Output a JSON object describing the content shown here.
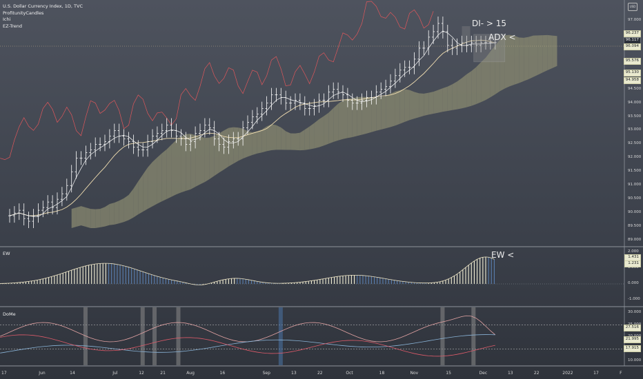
{
  "legend": {
    "title": "U.S. Dollar Currency Index, 1D, TVC",
    "indicators": [
      "ProfitunityCandles",
      "Ichi",
      "EZ-Trend"
    ]
  },
  "panes": {
    "ew_label": "EW",
    "dome_label": "DoMe"
  },
  "annotations": {
    "di": "DI- > 15",
    "adx": "ADX <",
    "ew": "EW <"
  },
  "top_right_icon": "USD",
  "colors": {
    "price_bar": "#ffffff",
    "kijun": "#f2dfb2",
    "tenkan": "#ffffff",
    "chikou": "#e0575b",
    "cloud_bull": "#8a8a70",
    "cloud_bear": "#4a6f98",
    "ew_up": "#f3f0d6",
    "ew_down": "#5a7fb0",
    "ew_line": "#efe6c6",
    "dome_line1": "#e6a5a5",
    "dome_line2": "#8ab4d8",
    "dome_line3": "#e05b6a",
    "highlight_grey": "#8a8a8a",
    "highlight_blue": "#4a74a8"
  },
  "axes": {
    "price_ticks": [
      "97.000",
      "96.500",
      "96.000",
      "95.500",
      "95.000",
      "94.500",
      "94.000",
      "93.500",
      "93.000",
      "92.500",
      "92.000",
      "91.500",
      "91.000",
      "90.500",
      "90.000",
      "89.500",
      "89.000"
    ],
    "ew_ticks": [
      "2.000",
      "1.000",
      "0.000",
      "-1.000"
    ],
    "dome_ticks": [
      "30.000",
      "25.000",
      "20.000",
      "15.000",
      "10.000"
    ],
    "x_ticks": [
      "17",
      "Jun",
      "14",
      "Jul",
      "12",
      "21",
      "Aug",
      "16",
      "Sep",
      "13",
      "22",
      "Oct",
      "18",
      "Nov",
      "15",
      "Dec",
      "13",
      "22",
      "2022",
      "17",
      "F"
    ]
  },
  "badges": {
    "price": [
      "96.237",
      "96.117",
      "96.094",
      "95.576",
      "95.130",
      "94.958"
    ],
    "ew": [
      "1.431",
      "1.231"
    ],
    "dome": [
      "27.516",
      "21.995",
      "17.915"
    ]
  },
  "chart_data": {
    "type": "candlestick",
    "symbol": "U.S. Dollar Currency Index",
    "interval": "1D",
    "price_range": [
      89.0,
      97.2
    ],
    "x_range_days": [
      0,
      206
    ],
    "price_series": {
      "day": [
        0,
        2,
        4,
        6,
        8,
        10,
        12,
        14,
        16,
        18,
        20,
        22,
        24,
        26,
        28,
        30,
        32,
        34,
        36,
        38,
        40,
        42,
        44,
        46,
        48,
        50,
        52,
        54,
        56,
        58,
        60,
        62,
        64,
        66,
        68,
        70,
        72,
        74,
        76,
        78,
        80,
        82,
        84,
        86,
        88,
        90,
        92,
        94,
        96,
        98,
        100,
        102,
        104,
        106,
        108,
        110,
        112,
        114,
        116,
        118,
        120,
        122,
        124,
        126,
        128,
        130,
        132,
        134,
        136,
        138,
        140,
        142,
        144,
        146,
        148,
        150,
        152,
        154,
        156,
        158,
        160,
        162,
        164,
        166,
        168,
        170,
        172,
        174,
        176,
        178,
        180,
        182,
        184,
        186,
        188,
        190,
        192,
        194,
        196,
        198,
        200,
        202,
        204
      ],
      "close": [
        89.9,
        90.0,
        90.1,
        89.8,
        89.7,
        89.9,
        90.1,
        90.2,
        90.4,
        90.2,
        90.5,
        90.7,
        91.0,
        91.5,
        92.0,
        92.0,
        92.2,
        92.3,
        92.5,
        92.5,
        92.6,
        92.8,
        93.0,
        92.8,
        92.7,
        92.6,
        92.4,
        92.3,
        92.3,
        92.6,
        92.8,
        92.9,
        93.0,
        93.2,
        93.0,
        92.8,
        92.7,
        92.5,
        92.6,
        92.9,
        93.0,
        93.2,
        93.1,
        92.7,
        92.5,
        92.4,
        92.6,
        92.7,
        92.7,
        93.1,
        93.3,
        93.5,
        93.6,
        93.8,
        94.0,
        94.3,
        94.3,
        94.2,
        94.0,
        94.0,
        94.1,
        94.0,
        93.8,
        93.8,
        93.9,
        94.1,
        94.1,
        94.4,
        94.5,
        94.4,
        94.3,
        94.1,
        94.0,
        94.0,
        94.1,
        94.2,
        94.2,
        94.4,
        94.5,
        94.6,
        94.8,
        95.0,
        95.2,
        95.3,
        95.3,
        95.6,
        96.0,
        96.0,
        96.4,
        96.6,
        96.9,
        96.6,
        96.1,
        96.0,
        96.1,
        96.2,
        96.1,
        96.2,
        96.1,
        96.2,
        96.2,
        96.2,
        96.2
      ]
    },
    "ew_oscillator": {
      "range": [
        -1.0,
        2.0
      ],
      "peaks": [
        {
          "day": 40,
          "value": 1.3
        },
        {
          "day": 200,
          "value": 1.7
        }
      ],
      "last": 1.431
    },
    "dome_range": [
      10.0,
      30.0
    ]
  }
}
